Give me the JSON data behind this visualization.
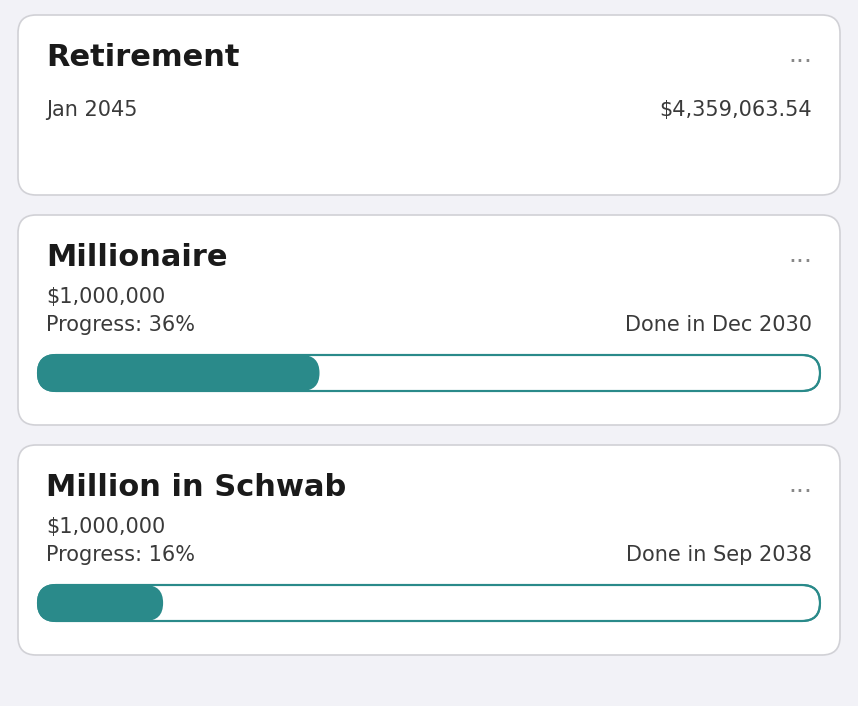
{
  "background_color": "#f2f2f7",
  "card_color": "#ffffff",
  "card_border_color": "#d1d1d6",
  "teal_color": "#2a8a8a",
  "teal_border_color": "#2a8a8a",
  "cards": [
    {
      "title": "Retirement",
      "subtitle_left": "Jan 2045",
      "subtitle_right": "$4,359,063.54",
      "has_progress": false,
      "progress": null,
      "amount": null,
      "done_label": null
    },
    {
      "title": "Millionaire",
      "subtitle_left": null,
      "subtitle_right": null,
      "has_progress": true,
      "progress": 0.36,
      "amount": "$1,000,000",
      "progress_label": "Progress: 36%",
      "done_label": "Done in Dec 2030"
    },
    {
      "title": "Million in Schwab",
      "subtitle_left": null,
      "subtitle_right": null,
      "has_progress": true,
      "progress": 0.16,
      "amount": "$1,000,000",
      "progress_label": "Progress: 16%",
      "done_label": "Done in Sep 2038"
    }
  ],
  "dots": "...",
  "title_fontsize": 22,
  "subtitle_fontsize": 15,
  "dots_fontsize": 18,
  "amount_fontsize": 15,
  "progress_fontsize": 15
}
